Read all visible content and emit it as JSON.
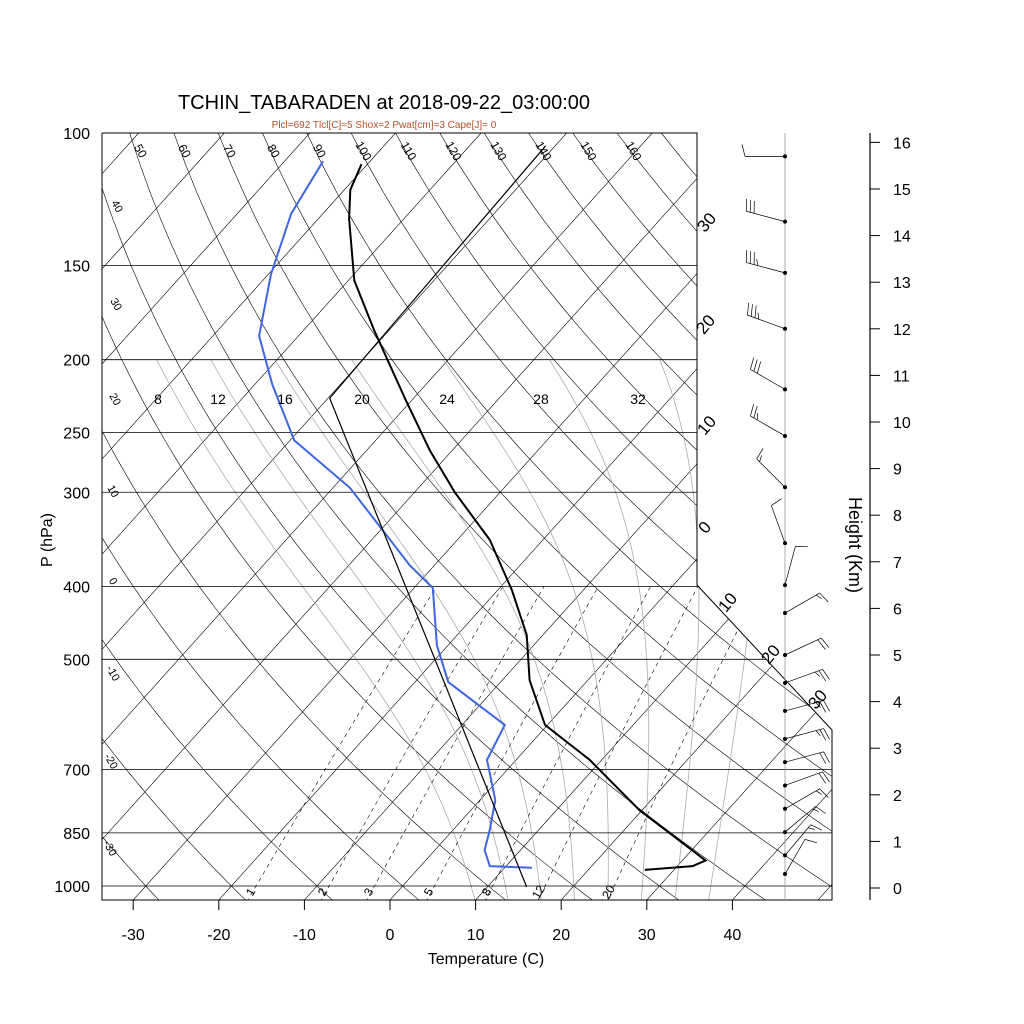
{
  "chart_data": {
    "type": "line",
    "title": "TCHIN_TABARADEN at 2018-09-22_03:00:00",
    "subtitle": "Plcl=692 Tlcl[C]=5 Shox=2 Pwat[cm]=3 Cape[J]= 0",
    "xlabel": "Temperature (C)",
    "ylabel": "P (hPa)",
    "y2label": "Height (Km)",
    "xlim": [
      -33,
      50
    ],
    "ylim_hpa": [
      1050,
      100
    ],
    "x_ticks": [
      "-30",
      "-20",
      "-10",
      "0",
      "10",
      "20",
      "30",
      "40"
    ],
    "p_ticks": [
      "100",
      "150",
      "200",
      "250",
      "300",
      "400",
      "500",
      "700",
      "850",
      "1000"
    ],
    "height_ticks": [
      "0",
      "1",
      "2",
      "3",
      "4",
      "5",
      "6",
      "7",
      "8",
      "9",
      "10",
      "11",
      "12",
      "13",
      "14",
      "15",
      "16"
    ],
    "dry_adiabat_labels_top": [
      "50",
      "60",
      "70",
      "80",
      "90",
      "100",
      "110",
      "120",
      "130",
      "140",
      "150",
      "160"
    ],
    "left_labels": [
      "40",
      "30",
      "20",
      "10",
      "0",
      "-10",
      "-20",
      "-30"
    ],
    "right_labels": [
      "30",
      "20",
      "10",
      "0",
      "10",
      "20",
      "30"
    ],
    "moist_adiabat_labels": [
      "8",
      "12",
      "16",
      "20",
      "24",
      "28",
      "32"
    ],
    "mixing_ratio_labels": [
      "1",
      "2",
      "3",
      "5",
      "8",
      "12",
      "20"
    ],
    "colors": {
      "temperature": "#000000",
      "dewpoint": "#3f66e0",
      "parcel": "#000000",
      "subtitle": "#b0502a"
    },
    "series": [
      {
        "name": "temperature",
        "points": [
          [
            952,
            26.6
          ],
          [
            941,
            31.8
          ],
          [
            925,
            32.7
          ],
          [
            793,
            19.7
          ],
          [
            680,
            8.6
          ],
          [
            611,
            -0.3
          ],
          [
            533,
            -6.8
          ],
          [
            464,
            -11.9
          ],
          [
            405,
            -18.3
          ],
          [
            347,
            -26.2
          ],
          [
            300,
            -35.3
          ],
          [
            264,
            -42.6
          ],
          [
            226,
            -50.8
          ],
          [
            183,
            -61.7
          ],
          [
            157,
            -69.3
          ],
          [
            130,
            -76.4
          ],
          [
            119,
            -79.3
          ],
          [
            110,
            -80.7
          ]
        ]
      },
      {
        "name": "dewpoint",
        "points": [
          [
            946,
            13.2
          ],
          [
            941,
            8.1
          ],
          [
            896,
            5.8
          ],
          [
            843,
            4.3
          ],
          [
            769,
            1.8
          ],
          [
            680,
            -3.4
          ],
          [
            611,
            -5.0
          ],
          [
            536,
            -16.1
          ],
          [
            479,
            -21.3
          ],
          [
            402,
            -27.8
          ],
          [
            375,
            -32.9
          ],
          [
            296,
            -48.0
          ],
          [
            256,
            -59.5
          ],
          [
            216,
            -67.9
          ],
          [
            186,
            -74.6
          ],
          [
            154,
            -79.7
          ],
          [
            128,
            -83.7
          ],
          [
            109,
            -85.5
          ]
        ]
      },
      {
        "name": "parcel",
        "points": [
          [
            1003,
            14.6
          ],
          [
            225,
            -59.8
          ],
          [
            104,
            -61.1
          ]
        ]
      }
    ],
    "winds": [
      {
        "height_km": 15.7,
        "dir": 270,
        "speed_kt": 10
      },
      {
        "height_km": 14.3,
        "dir": 285,
        "speed_kt": 30
      },
      {
        "height_km": 13.2,
        "dir": 285,
        "speed_kt": 35
      },
      {
        "height_km": 12.0,
        "dir": 290,
        "speed_kt": 35
      },
      {
        "height_km": 10.7,
        "dir": 300,
        "speed_kt": 30
      },
      {
        "height_km": 9.7,
        "dir": 300,
        "speed_kt": 25
      },
      {
        "height_km": 8.6,
        "dir": 315,
        "speed_kt": 15
      },
      {
        "height_km": 7.4,
        "dir": 340,
        "speed_kt": 10
      },
      {
        "height_km": 6.5,
        "dir": 15,
        "speed_kt": 10
      },
      {
        "height_km": 5.9,
        "dir": 60,
        "speed_kt": 15
      },
      {
        "height_km": 5.0,
        "dir": 65,
        "speed_kt": 20
      },
      {
        "height_km": 4.4,
        "dir": 70,
        "speed_kt": 25
      },
      {
        "height_km": 3.8,
        "dir": 75,
        "speed_kt": 25
      },
      {
        "height_km": 3.2,
        "dir": 75,
        "speed_kt": 25
      },
      {
        "height_km": 2.7,
        "dir": 75,
        "speed_kt": 20
      },
      {
        "height_km": 2.2,
        "dir": 70,
        "speed_kt": 20
      },
      {
        "height_km": 1.7,
        "dir": 60,
        "speed_kt": 15
      },
      {
        "height_km": 1.2,
        "dir": 50,
        "speed_kt": 15
      },
      {
        "height_km": 0.7,
        "dir": 40,
        "speed_kt": 15
      },
      {
        "height_km": 0.3,
        "dir": 30,
        "speed_kt": 10
      }
    ]
  }
}
